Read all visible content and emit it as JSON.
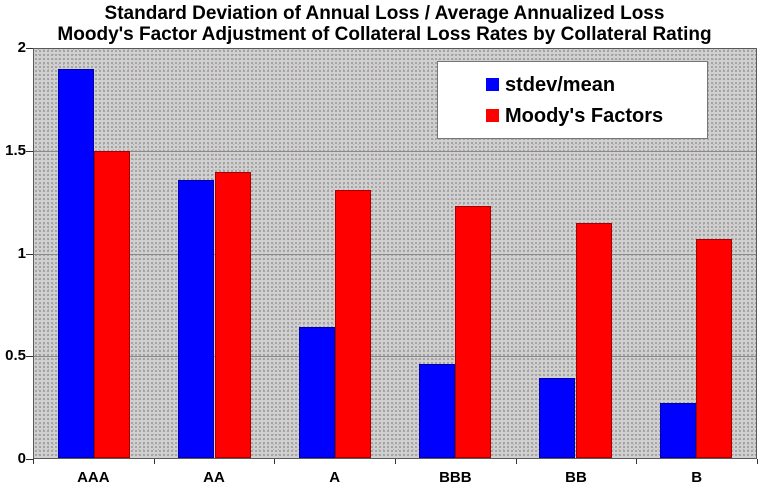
{
  "title": {
    "line1": "Standard Deviation of Annual Loss / Average Annualized Loss",
    "line2": "Moody's Factor Adjustment of Collateral Loss Rates by Collateral Rating"
  },
  "legend": [
    {
      "label": "stdev/mean",
      "color": "#0000ff"
    },
    {
      "label": "Moody's Factors",
      "color": "#ff0000"
    }
  ],
  "chart_data": {
    "type": "bar",
    "title": "Standard Deviation of Annual Loss / Average Annualized Loss\nMoody's Factor Adjustment of Collateral Loss Rates by Collateral Rating",
    "categories": [
      "AAA",
      "AA",
      "A",
      "BBB",
      "BB",
      "B"
    ],
    "series": [
      {
        "name": "stdev/mean",
        "color": "#0000ff",
        "values": [
          1.9,
          1.36,
          0.64,
          0.46,
          0.39,
          0.27
        ]
      },
      {
        "name": "Moody's Factors",
        "color": "#ff0000",
        "values": [
          1.5,
          1.4,
          1.31,
          1.23,
          1.15,
          1.07
        ]
      }
    ],
    "ylim": [
      0,
      2
    ],
    "yticks": [
      0,
      0.5,
      1,
      1.5,
      2
    ],
    "ytick_labels": [
      "0",
      "0.5",
      "1",
      "1.5",
      "2"
    ],
    "xlabel": "",
    "ylabel": "",
    "grid": true,
    "legend_position": "top-right",
    "plot_background": "#d0d0d0",
    "gridline_color": "#8a8a8a"
  }
}
